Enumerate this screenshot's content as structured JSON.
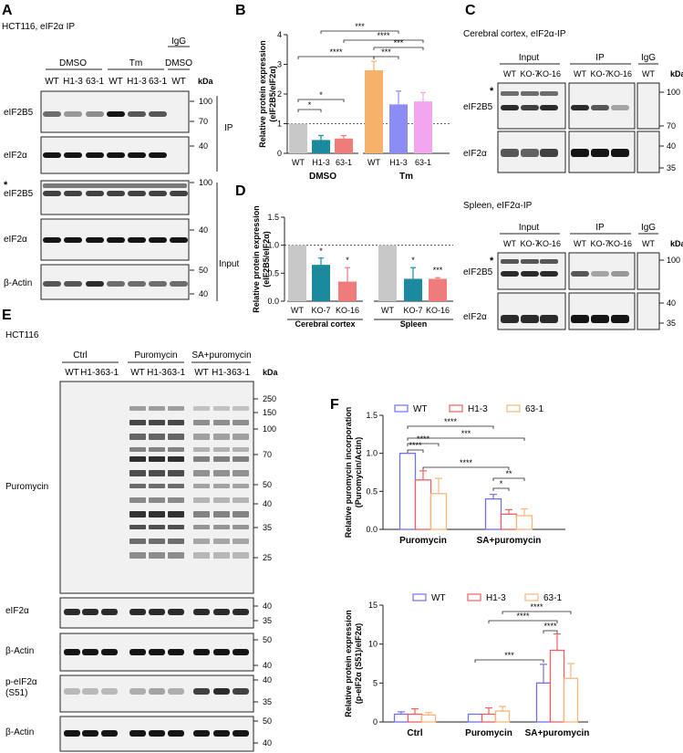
{
  "figure": {
    "panels": {
      "A": "A",
      "B": "B",
      "C": "C",
      "D": "D",
      "E": "E",
      "F": "F"
    },
    "kda": "kDa",
    "panel_a": {
      "title": "HCT116, eIF2α IP",
      "groups": [
        "DMSO",
        "Tm",
        "IgG\nDMSO"
      ],
      "lanes": [
        "WT",
        "H1-3",
        "63-1",
        "WT",
        "H1-3",
        "63-1",
        "WT"
      ],
      "rows": [
        "eIF2B5",
        "eIF2α",
        "eIF2B5",
        "eIF2α",
        "β-Actin"
      ],
      "markers": [
        "100",
        "70",
        "40",
        "100",
        "40",
        "50",
        "40"
      ],
      "section_ip": "IP",
      "section_input": "Input",
      "asterisk": "*"
    },
    "panel_c": {
      "title_top": "Cerebral cortex, eIF2α-IP",
      "title_bottom": "Spleen, eIF2α-IP",
      "groups": [
        "Input",
        "IP",
        "IgG"
      ],
      "lanes": [
        "WT",
        "KO-7",
        "KO-16",
        "WT",
        "KO-7",
        "KO-16",
        "WT"
      ],
      "rows": [
        "eIF2B5",
        "eIF2α"
      ],
      "markers_top": [
        "100",
        "70",
        "40",
        "35"
      ],
      "markers_bottom": [
        "100",
        "40",
        "35"
      ],
      "asterisk": "*"
    },
    "panel_e": {
      "title": "HCT116",
      "groups": [
        "Ctrl",
        "Puromycin",
        "SA+puromycin"
      ],
      "lanes": [
        "WT",
        "H1-3",
        "63-1",
        "WT",
        "H1-3",
        "63-1",
        "WT",
        "H1-3",
        "63-1"
      ],
      "rows": [
        "Puromycin",
        "eIF2α",
        "β-Actin",
        "p-eIF2α\n(S51)",
        "β-Actin"
      ],
      "markers_puro": [
        "250",
        "150",
        "100",
        "70",
        "50",
        "40",
        "35",
        "25"
      ],
      "markers_small": [
        "40",
        "35",
        "50",
        "40",
        "40",
        "35",
        "50",
        "40"
      ]
    }
  },
  "chart_data": [
    {
      "id": "B",
      "type": "bar",
      "ylabel": "Relative protein expression\n(eIF2B5/eIF2α)",
      "ylim": [
        0,
        4
      ],
      "yticks": [
        "0",
        "1",
        "2",
        "3",
        "4"
      ],
      "categories": [
        "WT",
        "H1-3",
        "63-1",
        "WT",
        "H1-3",
        "63-1"
      ],
      "groups": [
        "DMSO",
        "Tm"
      ],
      "values": [
        1.0,
        0.45,
        0.5,
        2.8,
        1.65,
        1.75
      ],
      "errors": [
        0,
        0.15,
        0.1,
        0.3,
        0.45,
        0.3
      ],
      "colors": [
        "#c8c8c8",
        "#1b8a9e",
        "#f07b7b",
        "#f6b26b",
        "#8c8cf5",
        "#f3a6f0"
      ],
      "reference_line": 1,
      "significance": [
        "*",
        "*",
        "****",
        "***",
        "****",
        "***",
        "***"
      ]
    },
    {
      "id": "D",
      "type": "bar",
      "ylabel": "Relative protein expression\n(eIF2B5/eIF2α)",
      "ylim": [
        0,
        1.5
      ],
      "yticks": [
        "0.0",
        "0.5",
        "1.0",
        "1.5"
      ],
      "categories": [
        "WT",
        "KO-7",
        "KO-16",
        "WT",
        "KO-7",
        "KO-16"
      ],
      "groups": [
        "Cerebral cortex",
        "Spleen"
      ],
      "values": [
        1.0,
        0.65,
        0.35,
        1.0,
        0.4,
        0.4
      ],
      "errors": [
        0,
        0.12,
        0.25,
        0,
        0.2,
        0.02
      ],
      "colors": [
        "#c8c8c8",
        "#1b8a9e",
        "#f07b7b",
        "#c8c8c8",
        "#1b8a9e",
        "#f07b7b"
      ],
      "reference_line": 1,
      "significance": [
        "",
        "*",
        "*",
        "",
        "*",
        "***"
      ]
    },
    {
      "id": "F-top",
      "type": "bar",
      "ylabel": "Relative puromycin incorporation\n(Puromycin/Actin)",
      "ylim": [
        0,
        1.5
      ],
      "yticks": [
        "0.0",
        "0.5",
        "1.0",
        "1.5"
      ],
      "categories": [
        "Puromycin",
        "SA+puromycin"
      ],
      "series": [
        {
          "name": "WT",
          "values": [
            1.0,
            0.4
          ],
          "errors": [
            0,
            0.06
          ],
          "color": "#7070f0"
        },
        {
          "name": "H1-3",
          "values": [
            0.65,
            0.2
          ],
          "errors": [
            0.12,
            0.06
          ],
          "color": "#f06060"
        },
        {
          "name": "63-1",
          "values": [
            0.47,
            0.18
          ],
          "errors": [
            0.2,
            0.09
          ],
          "color": "#f7b77a"
        }
      ],
      "significance": [
        "****",
        "***",
        "****",
        "***",
        "****",
        "**",
        "*"
      ]
    },
    {
      "id": "F-bottom",
      "type": "bar",
      "ylabel": "Relative protein expression\n(p-eIF2α (S51)/eIF2α)",
      "ylim": [
        0,
        15
      ],
      "yticks": [
        "0",
        "5",
        "10",
        "15"
      ],
      "categories": [
        "Ctrl",
        "Puromycin",
        "SA+puromycin"
      ],
      "series": [
        {
          "name": "WT",
          "values": [
            1.0,
            1.0,
            5.0
          ],
          "errors": [
            0.3,
            0,
            2.4
          ],
          "color": "#7070f0"
        },
        {
          "name": "H1-3",
          "values": [
            1.0,
            1.0,
            9.2
          ],
          "errors": [
            0.7,
            0.8,
            2.1
          ],
          "color": "#f06060"
        },
        {
          "name": "63-1",
          "values": [
            0.9,
            1.4,
            5.6
          ],
          "errors": [
            0.3,
            0.6,
            1.9
          ],
          "color": "#f7b77a"
        }
      ],
      "significance": [
        "****",
        "****",
        "****",
        "***"
      ]
    }
  ]
}
